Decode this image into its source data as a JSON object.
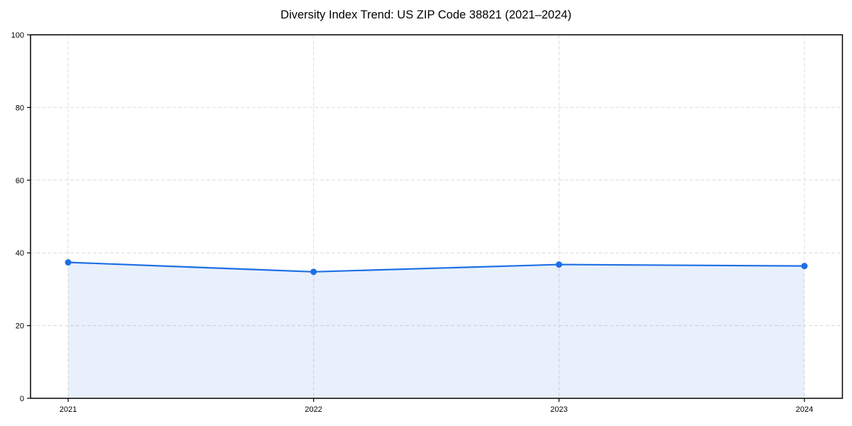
{
  "chart_data": {
    "type": "line",
    "area_fill": true,
    "title": "Diversity Index Trend: US ZIP Code 38821 (2021–2024)",
    "xlabel": "",
    "ylabel": "",
    "x": [
      2021,
      2022,
      2023,
      2024
    ],
    "values": [
      37.4,
      34.8,
      36.8,
      36.4
    ],
    "xticks": [
      "2021",
      "2022",
      "2023",
      "2024"
    ],
    "yticks": [
      0,
      20,
      40,
      60,
      80,
      100
    ],
    "ylim": [
      0,
      100
    ],
    "xlim_years": [
      2020.85,
      2024.15
    ],
    "grid": "dashed",
    "legend": "none",
    "colors": {
      "line": "#1e6fe6",
      "marker": "#1e6fe6",
      "fill": "rgba(30, 111, 230, 0.10)",
      "grid": "#dcdcdc",
      "spine": "#000000",
      "background": "#ffffff"
    }
  }
}
